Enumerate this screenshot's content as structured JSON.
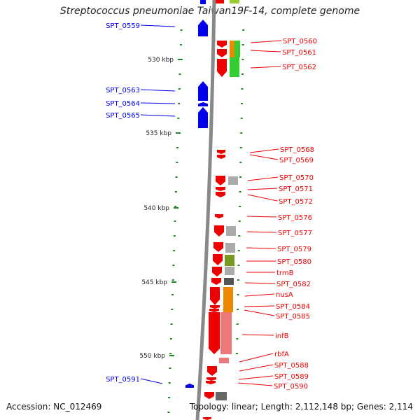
{
  "title": "Streptococcus pneumoniae Taiwan19F-14, complete genome",
  "accession": "Accession: NC_012469",
  "summary": "Topology: linear; Length: 2,112,148 bp; Genes: 2,114",
  "colors": {
    "backbone": "#888888",
    "reverse_strand": "#0000ee",
    "forward_strand": "#ee0000",
    "tick": "#228822"
  },
  "scale_labels": [
    "530 kbp",
    "535 kbp",
    "540 kbp",
    "545 kbp",
    "550 kbp"
  ],
  "left_gene_labels": [
    "SPT_0559",
    "SPT_0563",
    "SPT_0564",
    "SPT_0565",
    "SPT_0591"
  ],
  "right_gene_labels": [
    "SPT_0560",
    "SPT_0561",
    "SPT_0562",
    "SPT_0568",
    "SPT_0569",
    "SPT_0570",
    "SPT_0571",
    "SPT_0572",
    "SPT_0576",
    "SPT_0577",
    "SPT_0579",
    "SPT_0580",
    "trmB",
    "SPT_0582",
    "nusA",
    "SPT_0584",
    "SPT_0585",
    "infB",
    "rbfA",
    "SPT_0588",
    "SPT_0589",
    "SPT_0590"
  ]
}
